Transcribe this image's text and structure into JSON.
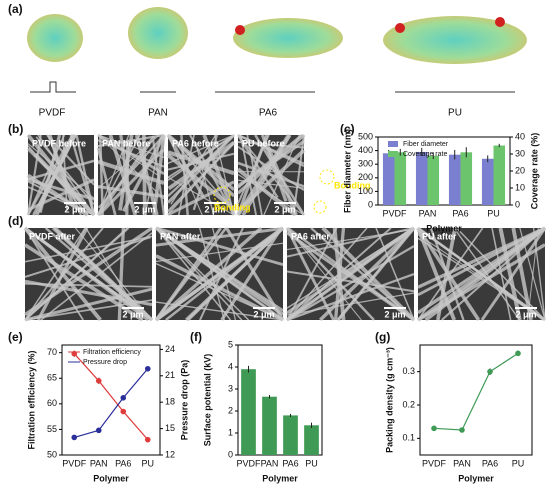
{
  "panel_tags": [
    "(a)",
    "(b)",
    "(c)",
    "(d)",
    "(e)",
    "(f)",
    "(g)"
  ],
  "molecules": {
    "labels": [
      "PVDF",
      "PAN",
      "PA6",
      "PU"
    ]
  },
  "sem_before": {
    "labels": [
      "PVDF before",
      "PAN before",
      "PA6 before",
      "PU before"
    ],
    "annotation": "Bonding"
  },
  "sem_after": {
    "labels": [
      "PVDF after",
      "PAN after",
      "PA6 after",
      "PU after"
    ]
  },
  "scale_bar": "2 μm",
  "chart_data": [
    {
      "type": "bar",
      "xlabel": "Polymer",
      "ylabel": "Fiber diameter (nm)",
      "y2label": "Coverage rate (%)",
      "categories": [
        "PVDF",
        "PAN",
        "PA6",
        "PU"
      ],
      "series": [
        {
          "name": "Fiber diameter",
          "color": "#7b7fd0",
          "values": [
            380,
            390,
            370,
            340
          ],
          "errors": [
            25,
            30,
            35,
            25
          ]
        },
        {
          "name": "Coverage rate",
          "color": "#6cc56c",
          "axis": "y2",
          "values": [
            31,
            29,
            31,
            35
          ],
          "errors": [
            2,
            2,
            3,
            1
          ]
        }
      ],
      "ylim": [
        0,
        500
      ],
      "yticks": [
        0,
        100,
        200,
        300,
        400,
        500
      ],
      "y2lim": [
        0,
        40
      ],
      "y2ticks": [
        0,
        10,
        20,
        30,
        40
      ],
      "legend": "upper right"
    },
    {
      "type": "line",
      "xlabel": "Polymer",
      "ylabel": "Filtration efficiency (%)",
      "y2label": "Pressure drop (Pa)",
      "categories": [
        "PVDF",
        "PAN",
        "PA6",
        "PU"
      ],
      "series": [
        {
          "name": "Filtration efficiency",
          "color": "#e03c3c",
          "values": [
            69.8,
            64.5,
            58.5,
            53
          ],
          "errors": [
            0.6,
            0.6,
            0.5,
            0.5
          ]
        },
        {
          "name": "Pressure drop",
          "color": "#2b2f9a",
          "axis": "y2",
          "values": [
            14,
            14.8,
            18.5,
            21.8
          ],
          "errors": [
            0.2,
            0.2,
            0.3,
            0.2
          ]
        }
      ],
      "ylim": [
        50,
        71.5
      ],
      "yticks": [
        50,
        55,
        60,
        65,
        70
      ],
      "y2lim": [
        12,
        24.5
      ],
      "y2ticks": [
        12,
        15,
        18,
        21,
        24
      ],
      "legend": "upper center"
    },
    {
      "type": "bar",
      "xlabel": "Polymer",
      "ylabel": "Surface potential (kV)",
      "categories": [
        "PVDF",
        "PAN",
        "PA6",
        "PU"
      ],
      "series": [
        {
          "color": "#3f9a55",
          "values": [
            3.9,
            2.65,
            1.8,
            1.35
          ],
          "errors": [
            0.15,
            0.08,
            0.07,
            0.12
          ]
        }
      ],
      "ylim": [
        0,
        5
      ],
      "yticks": [
        0,
        1,
        2,
        3,
        4,
        5
      ]
    },
    {
      "type": "line",
      "xlabel": "Polymer",
      "ylabel": "Packing density (g cm⁻³)",
      "categories": [
        "PVDF",
        "PAN",
        "PA6",
        "PU"
      ],
      "series": [
        {
          "color": "#3f9a55",
          "values": [
            0.13,
            0.125,
            0.3,
            0.355
          ],
          "errors": [
            0.005,
            0.004,
            0.01,
            0.008
          ]
        }
      ],
      "ylim": [
        0.05,
        0.38
      ],
      "yticks": [
        0.1,
        0.2,
        0.3
      ]
    }
  ]
}
